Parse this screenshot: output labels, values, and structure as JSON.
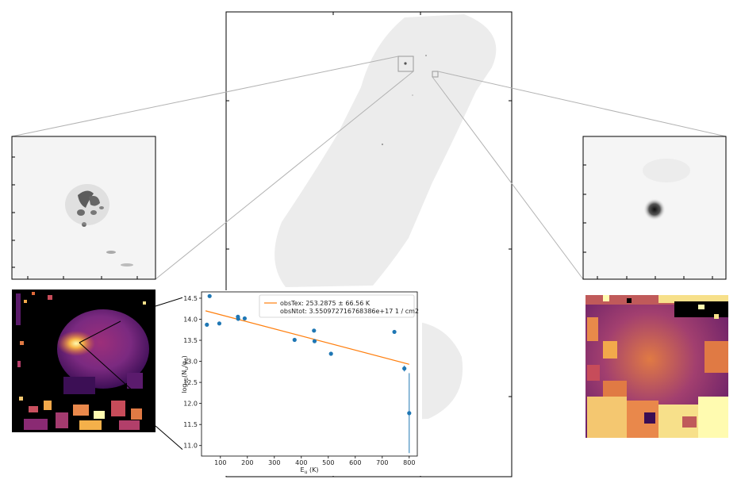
{
  "chart_data": {
    "type": "scatter",
    "xlabel": "E_u (K)",
    "ylabel": "log10(N_u/g_u)",
    "xlim": [
      30,
      830
    ],
    "ylim": [
      10.75,
      14.65
    ],
    "xticks": [
      100,
      200,
      300,
      400,
      500,
      600,
      700,
      800
    ],
    "yticks": [
      11.0,
      11.5,
      12.0,
      12.5,
      13.0,
      13.5,
      14.0,
      14.5
    ],
    "legend": {
      "location": "top-right",
      "entries": [
        "obsTex: 253.2875 ± 66.56 K",
        "obsNtot: 3.550972716768386e+17 1 / cm2"
      ]
    },
    "fit_line": {
      "x": [
        45,
        800
      ],
      "y": [
        14.2,
        12.93
      ]
    },
    "points": [
      {
        "x": 50,
        "y": 13.87,
        "err": 0
      },
      {
        "x": 60,
        "y": 14.55,
        "err": 0
      },
      {
        "x": 96,
        "y": 13.9,
        "err": 0
      },
      {
        "x": 165,
        "y": 14.06,
        "err": 0
      },
      {
        "x": 166,
        "y": 14.01,
        "err": 0
      },
      {
        "x": 190,
        "y": 14.02,
        "err": 0
      },
      {
        "x": 375,
        "y": 13.51,
        "err": 0
      },
      {
        "x": 447,
        "y": 13.73,
        "err": 0
      },
      {
        "x": 449,
        "y": 13.48,
        "err": 0
      },
      {
        "x": 510,
        "y": 13.18,
        "err": 0
      },
      {
        "x": 745,
        "y": 13.7,
        "err": 0
      },
      {
        "x": 782,
        "y": 12.83,
        "err": 0.07
      },
      {
        "x": 800,
        "y": 11.77,
        "err": 0.95
      }
    ],
    "colors": {
      "points": "#1f77b4",
      "fit": "#ff7f0e"
    }
  }
}
